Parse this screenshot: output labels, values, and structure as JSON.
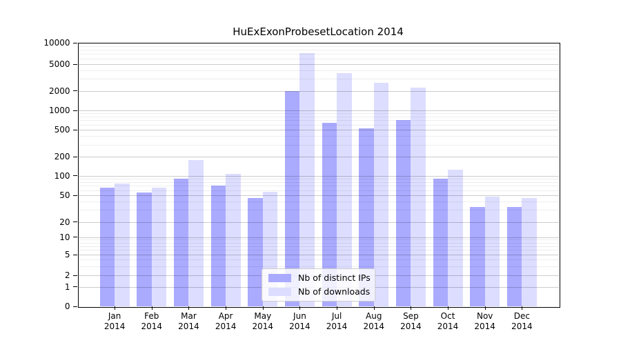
{
  "title": "HuExExonProbesetLocation 2014",
  "chart_data": {
    "type": "bar",
    "title": "HuExExonProbesetLocation 2014",
    "categories": [
      "Jan",
      "Feb",
      "Mar",
      "Apr",
      "May",
      "Jun",
      "Jul",
      "Aug",
      "Sep",
      "Oct",
      "Nov",
      "Dec"
    ],
    "year_label": "2014",
    "series": [
      {
        "name": "Nb of distinct IPs",
        "color": "#aaaaff",
        "values": [
          65,
          55,
          90,
          70,
          46,
          2000,
          640,
          530,
          715,
          89,
          33,
          33
        ]
      },
      {
        "name": "Nb of downloads",
        "color": "#ddddff",
        "values": [
          75,
          66,
          175,
          108,
          57,
          7200,
          3700,
          2600,
          2250,
          124,
          48,
          45
        ]
      }
    ],
    "xlabel": "",
    "ylabel": "",
    "y_scale": "symlog",
    "y_ticks": [
      0,
      1,
      2,
      5,
      10,
      20,
      50,
      100,
      200,
      500,
      1000,
      2000,
      5000,
      10000
    ],
    "ylim": [
      0,
      10000
    ],
    "grid": true,
    "legend_position": "bottom-center"
  }
}
